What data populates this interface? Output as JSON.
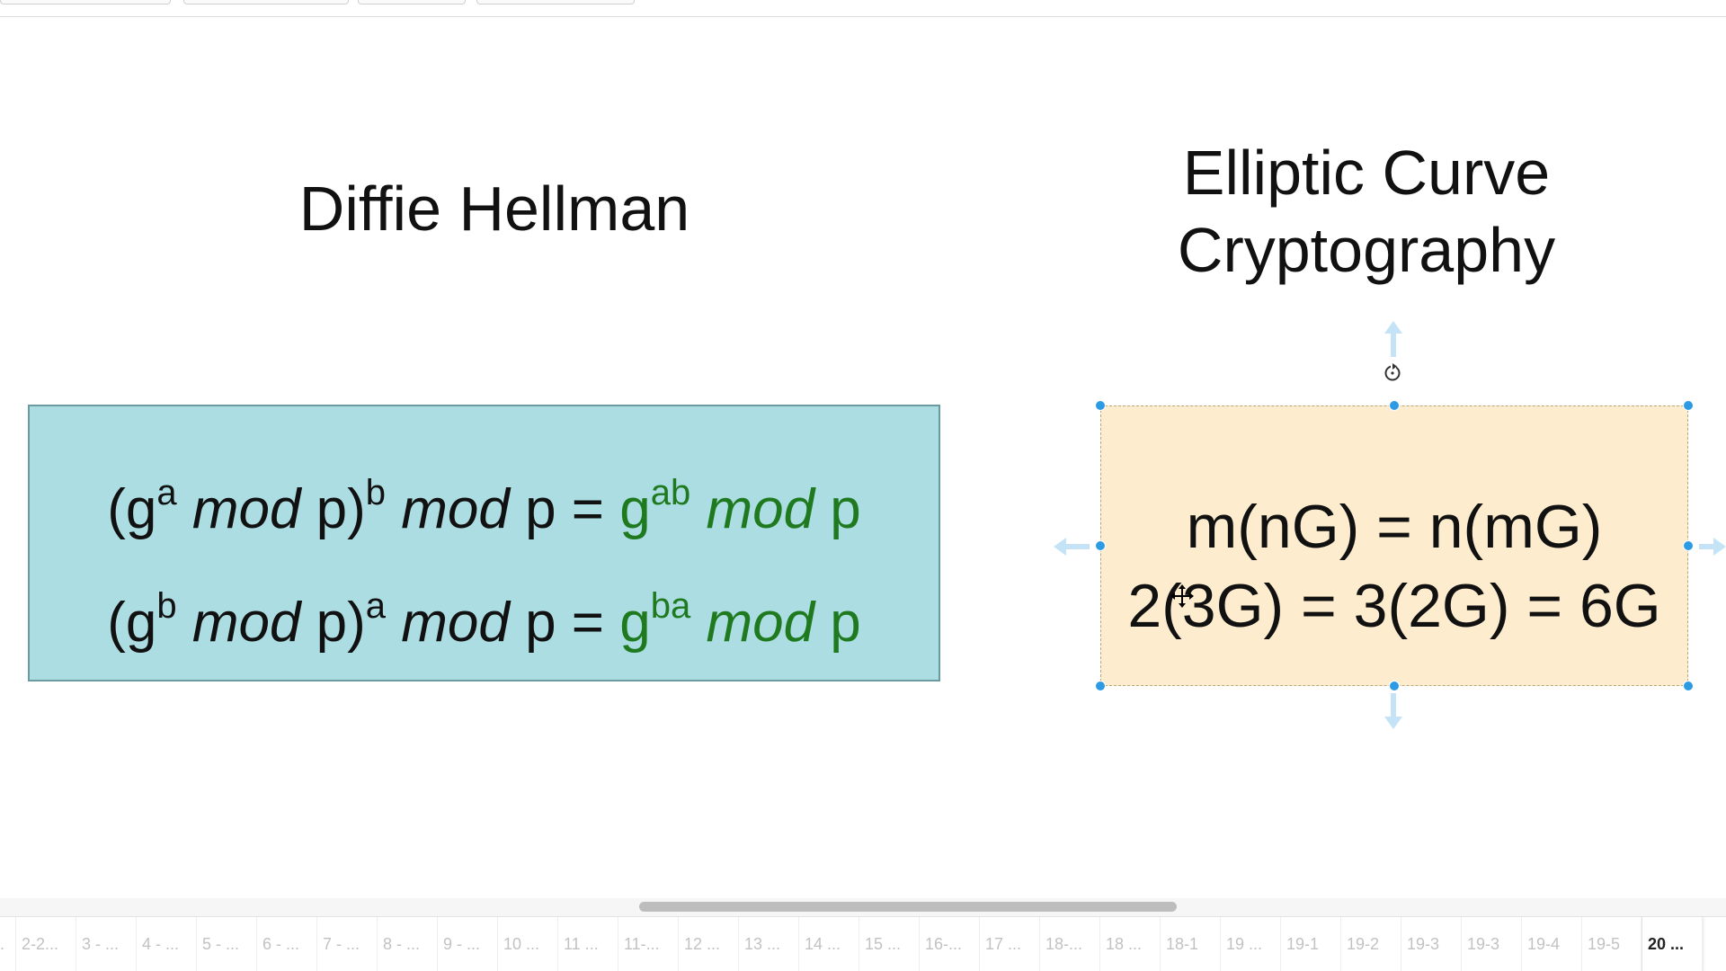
{
  "slide": {
    "dh_title": "Diffie Hellman",
    "ecc_title_line1": "Elliptic Curve",
    "ecc_title_line2": "Cryptography",
    "dh_box": {
      "line1": {
        "open": "(g",
        "exp1": "a",
        "mod1": "mod",
        "mid": " p)",
        "exp2": "b",
        "mod2": "mod",
        "tail": " p = ",
        "res_base": "g",
        "res_exp": "ab",
        "res_mod": "mod",
        "res_tail": " p"
      },
      "line2": {
        "open": "(g",
        "exp1": "b",
        "mod1": "mod",
        "mid": " p)",
        "exp2": "a",
        "mod2": "mod",
        "tail": " p = ",
        "res_base": "g",
        "res_exp": "ba",
        "res_mod": "mod",
        "res_tail": " p"
      }
    },
    "ecc_box": {
      "line1": "m(nG) = n(mG)",
      "line2": "2(3G) = 3(2G) = 6G"
    }
  },
  "colors": {
    "dh_box_fill": "#abdde2",
    "ecc_box_fill": "#fdeccd",
    "green_text": "#1f7a1f",
    "selection_blue": "#2d9be3"
  },
  "slide_strip": {
    "tabs": [
      ".",
      "2-2...",
      "3 - ...",
      "4 - ...",
      "5 - ...",
      "6 - ...",
      "7 - ...",
      "8 - ...",
      "9 - ...",
      "10 ...",
      "11 ...",
      "11-...",
      "12 ...",
      "13 ...",
      "14 ...",
      "15 ...",
      "16-...",
      "17 ...",
      "18-...",
      "18 ...",
      "18-1",
      "19 ...",
      "19-1",
      "19-2",
      "19-3",
      "19-3",
      "19-4",
      "19-5",
      "20 ..."
    ],
    "active_tab": "20 ..."
  }
}
